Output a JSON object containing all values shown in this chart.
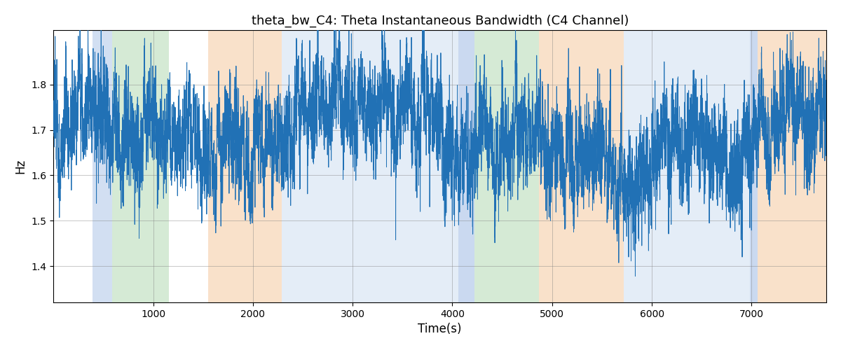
{
  "title": "theta_bw_C4: Theta Instantaneous Bandwidth (C4 Channel)",
  "xlabel": "Time(s)",
  "ylabel": "Hz",
  "xlim": [
    0,
    7750
  ],
  "ylim": [
    1.32,
    1.92
  ],
  "yticks": [
    1.4,
    1.5,
    1.6,
    1.7,
    1.8
  ],
  "xticks": [
    1000,
    2000,
    3000,
    4000,
    5000,
    6000,
    7000
  ],
  "line_color": "#2171b5",
  "background_color": "#ffffff",
  "bands": [
    {
      "start": 395,
      "end": 590,
      "color": "#aec6e8",
      "alpha": 0.55
    },
    {
      "start": 590,
      "end": 1160,
      "color": "#b3d9b3",
      "alpha": 0.55
    },
    {
      "start": 1550,
      "end": 2290,
      "color": "#f5c9a0",
      "alpha": 0.55
    },
    {
      "start": 2290,
      "end": 4060,
      "color": "#c5d8ee",
      "alpha": 0.45
    },
    {
      "start": 4060,
      "end": 4220,
      "color": "#aec6e8",
      "alpha": 0.65
    },
    {
      "start": 4220,
      "end": 4870,
      "color": "#b3d9b3",
      "alpha": 0.55
    },
    {
      "start": 4870,
      "end": 5720,
      "color": "#f5c9a0",
      "alpha": 0.55
    },
    {
      "start": 5720,
      "end": 6980,
      "color": "#c5d8ee",
      "alpha": 0.45
    },
    {
      "start": 6980,
      "end": 7060,
      "color": "#aec6e8",
      "alpha": 0.65
    },
    {
      "start": 7060,
      "end": 7750,
      "color": "#f5c9a0",
      "alpha": 0.55
    }
  ],
  "seed": 42,
  "n_points": 7750,
  "mean": 1.695,
  "figsize": [
    12.0,
    5.0
  ],
  "dpi": 100
}
